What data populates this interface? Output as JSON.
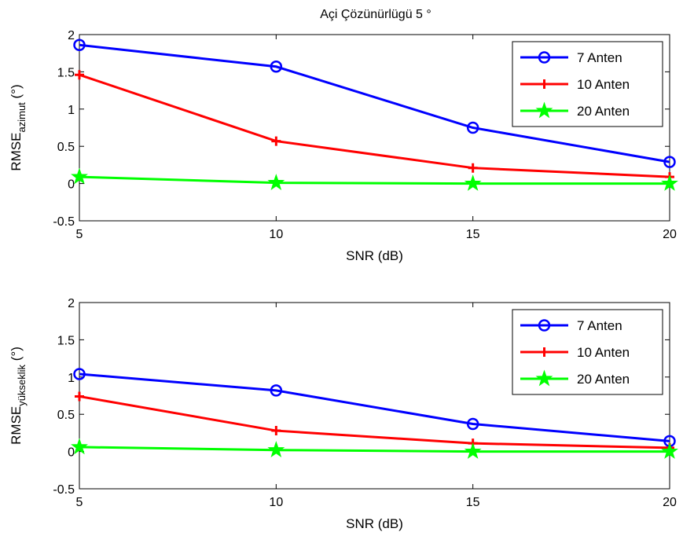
{
  "figure": {
    "title": "Açi Çözünürlügü 5 °"
  },
  "chart_data": [
    {
      "type": "line",
      "title": "Açi Çözünürlügü 5 °",
      "xlabel": "SNR (dB)",
      "ylabel": {
        "main": "RMSE",
        "sub": "azimut",
        "unit": " (°)"
      },
      "xlim": [
        5,
        20
      ],
      "ylim": [
        -0.5,
        2
      ],
      "xticks": [
        "5",
        "10",
        "15",
        "20"
      ],
      "yticks": [
        "-0.5",
        "0",
        "0.5",
        "1",
        "1.5",
        "2"
      ],
      "grid": false,
      "legend_position": "top-right",
      "x": [
        5,
        10,
        15,
        20
      ],
      "series": [
        {
          "name": "7 Anten",
          "color": "#0000ff",
          "marker": "circle",
          "values": [
            1.86,
            1.57,
            0.75,
            0.29
          ]
        },
        {
          "name": "10 Anten",
          "color": "#ff0000",
          "marker": "plus",
          "values": [
            1.46,
            0.57,
            0.21,
            0.09
          ]
        },
        {
          "name": "20 Anten",
          "color": "#00ff00",
          "marker": "star",
          "values": [
            0.09,
            0.01,
            0.0,
            0.0
          ]
        }
      ]
    },
    {
      "type": "line",
      "title": "",
      "xlabel": "SNR (dB)",
      "ylabel": {
        "main": "RMSE",
        "sub": "yükseklik",
        "unit": " (°)"
      },
      "xlim": [
        5,
        20
      ],
      "ylim": [
        -0.5,
        2
      ],
      "xticks": [
        "5",
        "10",
        "15",
        "20"
      ],
      "yticks": [
        "-0.5",
        "0",
        "0.5",
        "1",
        "1.5",
        "2"
      ],
      "grid": false,
      "legend_position": "top-right",
      "x": [
        5,
        10,
        15,
        20
      ],
      "series": [
        {
          "name": "7 Anten",
          "color": "#0000ff",
          "marker": "circle",
          "values": [
            1.04,
            0.82,
            0.37,
            0.14
          ]
        },
        {
          "name": "10 Anten",
          "color": "#ff0000",
          "marker": "plus",
          "values": [
            0.74,
            0.28,
            0.11,
            0.05
          ]
        },
        {
          "name": "20 Anten",
          "color": "#00ff00",
          "marker": "star",
          "values": [
            0.06,
            0.02,
            0.0,
            0.0
          ]
        }
      ]
    }
  ]
}
